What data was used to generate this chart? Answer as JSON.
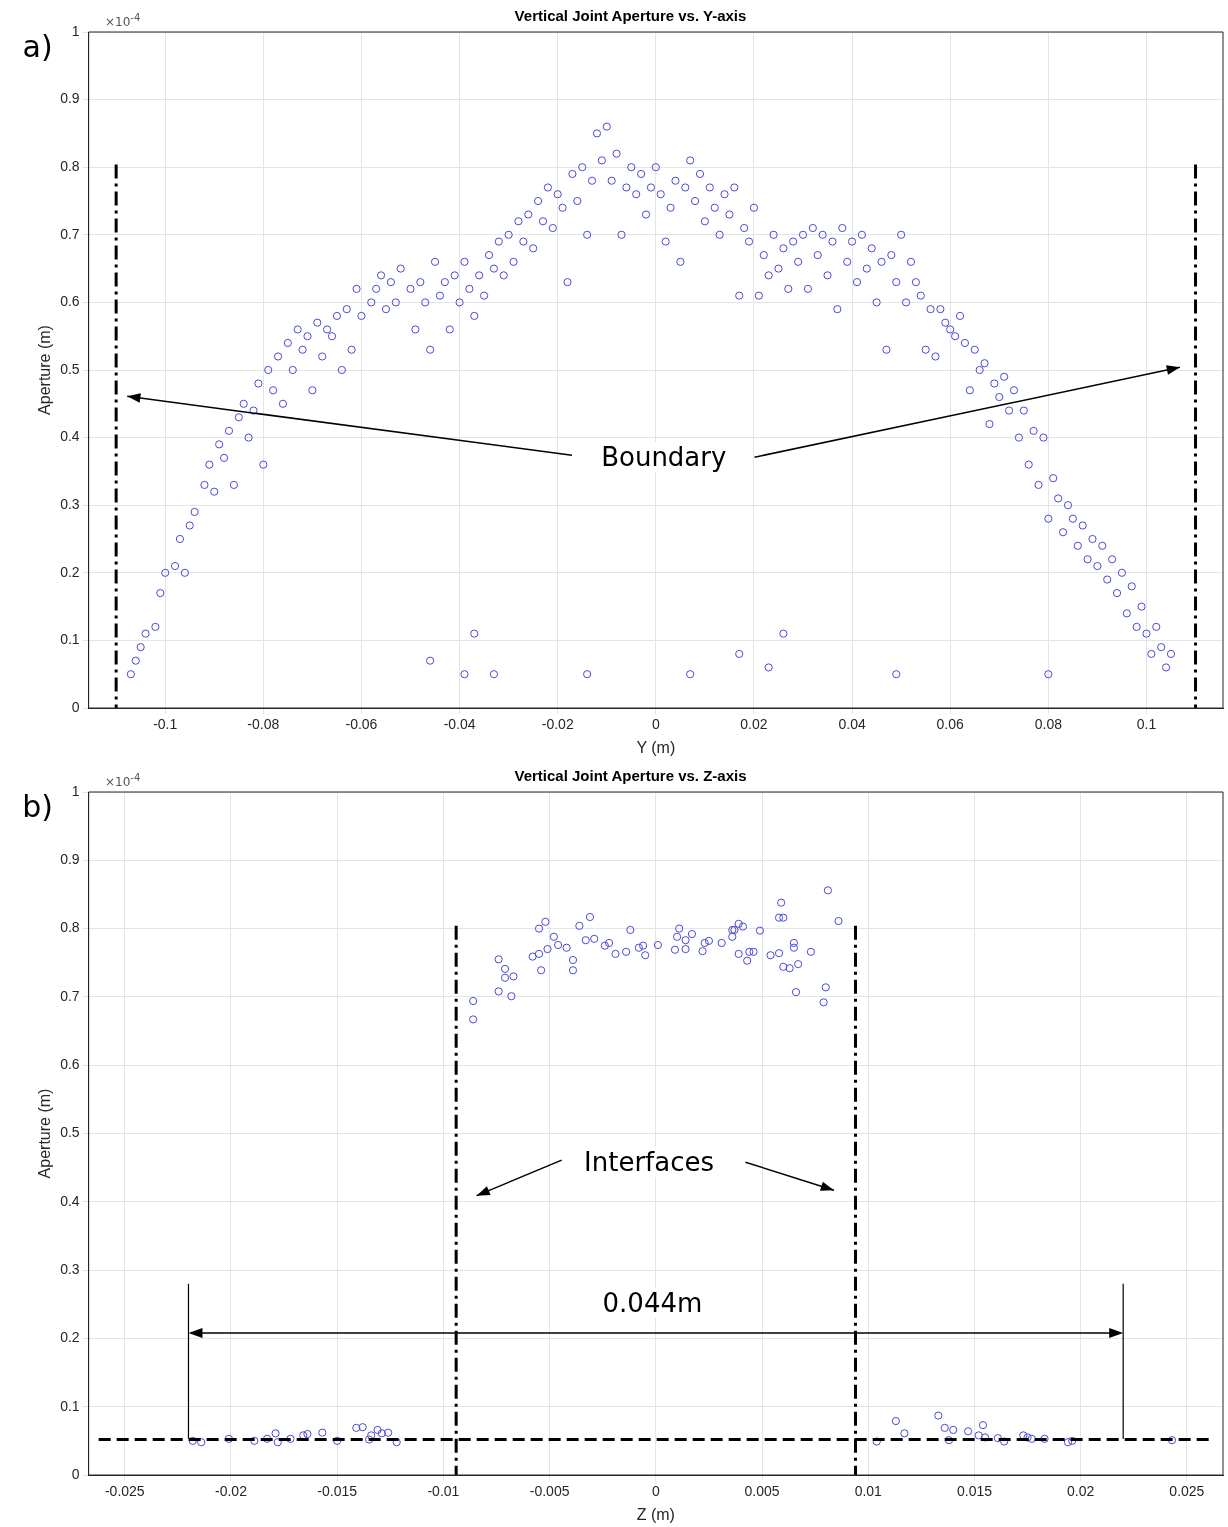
{
  "chart_data": [
    {
      "type": "scatter",
      "title": "Vertical Joint Aperture vs. Y-axis",
      "xlabel": "Y (m)",
      "ylabel": "Aperture (m)",
      "annotations": [
        "a)",
        "×10$^{-4}$",
        "Boundary"
      ],
      "xlim": [
        -0.1156,
        0.1156
      ],
      "ylim": [
        0,
        1
      ],
      "xticks": [
        -0.1,
        -0.08,
        -0.06,
        -0.04,
        -0.02,
        0,
        0.02,
        0.04,
        0.06,
        0.08,
        0.1
      ],
      "yticks": [
        0,
        0.1,
        0.2,
        0.3,
        0.4,
        0.5,
        0.6,
        0.7,
        0.8,
        0.9,
        1
      ],
      "grid": true,
      "marker": "circle",
      "ref_lines": [
        {
          "axis": "x",
          "value": -0.11,
          "color": "#000000",
          "line_style": "dashdot"
        },
        {
          "axis": "x",
          "value": 0.11,
          "color": "#000000",
          "line_style": "dashdot"
        }
      ],
      "series": [
        {
          "color": "#4b4bd6",
          "x": [
            -0.107,
            -0.106,
            -0.105,
            -0.104,
            -0.102,
            -0.101,
            -0.1,
            -0.098,
            -0.097,
            -0.096,
            -0.095,
            -0.094,
            -0.092,
            -0.091,
            -0.09,
            -0.089,
            -0.088,
            -0.087,
            -0.086,
            -0.085,
            -0.084,
            -0.083,
            -0.082,
            -0.081,
            -0.08,
            -0.079,
            -0.078,
            -0.077,
            -0.076,
            -0.075,
            -0.074,
            -0.073,
            -0.072,
            -0.071,
            -0.07,
            -0.069,
            -0.068,
            -0.067,
            -0.066,
            -0.065,
            -0.064,
            -0.063,
            -0.062,
            -0.061,
            -0.06,
            -0.058,
            -0.057,
            -0.056,
            -0.055,
            -0.054,
            -0.053,
            -0.052,
            -0.05,
            -0.049,
            -0.048,
            -0.047,
            -0.046,
            -0.045,
            -0.044,
            -0.043,
            -0.042,
            -0.041,
            -0.04,
            -0.039,
            -0.038,
            -0.037,
            -0.036,
            -0.035,
            -0.034,
            -0.033,
            -0.032,
            -0.031,
            -0.03,
            -0.029,
            -0.028,
            -0.027,
            -0.026,
            -0.025,
            -0.024,
            -0.023,
            -0.022,
            -0.021,
            -0.02,
            -0.019,
            -0.018,
            -0.017,
            -0.016,
            -0.015,
            -0.014,
            -0.013,
            -0.012,
            -0.011,
            -0.01,
            -0.009,
            -0.008,
            -0.007,
            -0.006,
            -0.005,
            -0.004,
            -0.003,
            -0.002,
            -0.001,
            0,
            0.001,
            0.002,
            0.003,
            0.004,
            0.005,
            0.006,
            0.007,
            0.008,
            0.009,
            0.01,
            0.011,
            0.012,
            0.013,
            0.014,
            0.015,
            0.016,
            0.017,
            0.018,
            0.019,
            0.02,
            0.021,
            0.022,
            0.023,
            0.024,
            0.025,
            0.026,
            0.027,
            0.028,
            0.029,
            0.03,
            0.031,
            0.032,
            0.033,
            0.034,
            0.035,
            0.036,
            0.037,
            0.038,
            0.039,
            0.04,
            0.041,
            0.042,
            0.043,
            0.044,
            0.045,
            0.046,
            0.047,
            0.048,
            0.049,
            0.05,
            0.051,
            0.052,
            0.053,
            0.054,
            0.055,
            0.056,
            0.057,
            0.058,
            0.059,
            0.06,
            0.061,
            0.062,
            0.063,
            0.064,
            0.065,
            0.066,
            0.067,
            0.068,
            0.069,
            0.07,
            0.071,
            0.072,
            0.073,
            0.074,
            0.075,
            0.076,
            0.077,
            0.078,
            0.079,
            0.08,
            0.081,
            0.082,
            0.083,
            0.084,
            0.085,
            0.086,
            0.087,
            0.088,
            0.089,
            0.09,
            0.091,
            0.092,
            0.093,
            0.094,
            0.095,
            0.096,
            0.097,
            0.098,
            0.099,
            0.1,
            0.101,
            0.102,
            0.103,
            0.104,
            0.105,
            -0.046,
            -0.039,
            -0.037,
            -0.033,
            -0.014,
            0.007,
            0.017,
            0.023,
            0.026,
            0.049,
            0.08
          ],
          "values": [
            0.05,
            0.07,
            0.09,
            0.11,
            0.12,
            0.17,
            0.2,
            0.21,
            0.25,
            0.2,
            0.27,
            0.29,
            0.33,
            0.36,
            0.32,
            0.39,
            0.37,
            0.41,
            0.33,
            0.43,
            0.45,
            0.4,
            0.44,
            0.48,
            0.36,
            0.5,
            0.47,
            0.52,
            0.45,
            0.54,
            0.5,
            0.56,
            0.53,
            0.55,
            0.47,
            0.57,
            0.52,
            0.56,
            0.55,
            0.58,
            0.5,
            0.59,
            0.53,
            0.62,
            0.58,
            0.6,
            0.62,
            0.64,
            0.59,
            0.63,
            0.6,
            0.65,
            0.62,
            0.56,
            0.63,
            0.6,
            0.53,
            0.66,
            0.61,
            0.63,
            0.56,
            0.64,
            0.6,
            0.66,
            0.62,
            0.58,
            0.64,
            0.61,
            0.67,
            0.65,
            0.69,
            0.64,
            0.7,
            0.66,
            0.72,
            0.69,
            0.73,
            0.68,
            0.75,
            0.72,
            0.77,
            0.71,
            0.76,
            0.74,
            0.63,
            0.79,
            0.75,
            0.8,
            0.7,
            0.78,
            0.85,
            0.81,
            0.86,
            0.78,
            0.82,
            0.7,
            0.77,
            0.8,
            0.76,
            0.79,
            0.73,
            0.77,
            0.8,
            0.76,
            0.69,
            0.74,
            0.78,
            0.66,
            0.77,
            0.81,
            0.75,
            0.79,
            0.72,
            0.77,
            0.74,
            0.7,
            0.76,
            0.73,
            0.77,
            0.61,
            0.71,
            0.69,
            0.74,
            0.61,
            0.67,
            0.64,
            0.7,
            0.65,
            0.68,
            0.62,
            0.69,
            0.66,
            0.7,
            0.62,
            0.71,
            0.67,
            0.7,
            0.64,
            0.69,
            0.59,
            0.71,
            0.66,
            0.69,
            0.63,
            0.7,
            0.65,
            0.68,
            0.6,
            0.66,
            0.53,
            0.67,
            0.63,
            0.7,
            0.6,
            0.66,
            0.63,
            0.61,
            0.53,
            0.59,
            0.52,
            0.59,
            0.57,
            0.56,
            0.55,
            0.58,
            0.54,
            0.47,
            0.53,
            0.5,
            0.51,
            0.42,
            0.48,
            0.46,
            0.49,
            0.44,
            0.47,
            0.4,
            0.44,
            0.36,
            0.41,
            0.33,
            0.4,
            0.28,
            0.34,
            0.31,
            0.26,
            0.3,
            0.28,
            0.24,
            0.27,
            0.22,
            0.25,
            0.21,
            0.24,
            0.19,
            0.22,
            0.17,
            0.2,
            0.14,
            0.18,
            0.12,
            0.15,
            0.11,
            0.08,
            0.12,
            0.09,
            0.06,
            0.08,
            0.07,
            0.05,
            0.11,
            0.05,
            0.05,
            0.05,
            0.08,
            0.06,
            0.11,
            0.05,
            0.05
          ]
        }
      ]
    },
    {
      "type": "scatter",
      "title": "Vertical Joint Aperture vs. Z-axis",
      "xlabel": "Z (m)",
      "ylabel": "Aperture (m)",
      "annotations": [
        "b)",
        "×10$^{-4}$",
        "Interfaces",
        "0.044m"
      ],
      "xlim": [
        -0.0267,
        0.0267
      ],
      "ylim": [
        0,
        1
      ],
      "xticks": [
        -0.025,
        -0.02,
        -0.015,
        -0.01,
        -0.005,
        0,
        0.005,
        0.01,
        0.015,
        0.02,
        0.025
      ],
      "yticks": [
        0,
        0.1,
        0.2,
        0.3,
        0.4,
        0.5,
        0.6,
        0.7,
        0.8,
        0.9,
        1
      ],
      "grid": true,
      "marker": "circle",
      "ref_lines": [
        {
          "axis": "x",
          "value": -0.0094,
          "color": "#000000",
          "line_style": "dashdot"
        },
        {
          "axis": "x",
          "value": 0.0094,
          "color": "#000000",
          "line_style": "dashdot"
        },
        {
          "axis": "y",
          "value": 0.052,
          "color": "#000000",
          "line_style": "dashed"
        }
      ],
      "series": [
        {
          "color": "#4b4bd6",
          "x": [
            -0.0086,
            -0.0086,
            -0.0074,
            -0.0074,
            -0.0071,
            -0.0071,
            -0.0068,
            -0.0067,
            -0.0058,
            -0.0055,
            -0.0055,
            -0.0054,
            -0.0052,
            -0.0051,
            -0.0048,
            -0.0046,
            -0.0042,
            -0.0039,
            -0.0039,
            -0.0036,
            -0.0033,
            -0.0031,
            -0.0029,
            -0.0024,
            -0.0022,
            -0.0019,
            -0.0014,
            -0.0012,
            -0.0008,
            -0.0006,
            -0.0005,
            0.0001,
            0.0009,
            0.001,
            0.0011,
            0.0014,
            0.0014,
            0.0017,
            0.0022,
            0.0023,
            0.0025,
            0.0031,
            0.0036,
            0.0036,
            0.0037,
            0.0039,
            0.0039,
            0.0041,
            0.0043,
            0.0044,
            0.0046,
            0.0049,
            0.0054,
            0.0058,
            0.0059,
            0.0058,
            0.006,
            0.006,
            0.0063,
            0.0065,
            0.0065,
            0.0066,
            0.0067,
            0.0073,
            0.0079,
            0.008,
            0.0081,
            0.0086,
            -0.0218,
            -0.0214,
            -0.0201,
            -0.0189,
            -0.0183,
            -0.0179,
            -0.0178,
            -0.0172,
            -0.0166,
            -0.0164,
            -0.0157,
            -0.015,
            -0.0141,
            -0.0138,
            -0.0135,
            -0.0134,
            -0.0131,
            -0.0129,
            -0.0126,
            -0.0122,
            0.0104,
            0.0113,
            0.0117,
            0.0133,
            0.0136,
            0.0138,
            0.014,
            0.0147,
            0.0152,
            0.0154,
            0.0155,
            0.0161,
            0.0164,
            0.0173,
            0.0175,
            0.0177,
            0.0183,
            0.0194,
            0.0196,
            0.0243
          ],
          "values": [
            0.667,
            0.694,
            0.755,
            0.708,
            0.741,
            0.728,
            0.701,
            0.73,
            0.759,
            0.763,
            0.8,
            0.739,
            0.81,
            0.77,
            0.788,
            0.776,
            0.772,
            0.754,
            0.739,
            0.804,
            0.783,
            0.817,
            0.785,
            0.775,
            0.779,
            0.763,
            0.766,
            0.798,
            0.772,
            0.775,
            0.761,
            0.776,
            0.769,
            0.788,
            0.8,
            0.77,
            0.783,
            0.792,
            0.767,
            0.779,
            0.782,
            0.779,
            0.798,
            0.788,
            0.798,
            0.807,
            0.763,
            0.803,
            0.753,
            0.766,
            0.766,
            0.797,
            0.761,
            0.764,
            0.838,
            0.816,
            0.816,
            0.744,
            0.742,
            0.779,
            0.772,
            0.707,
            0.748,
            0.766,
            0.692,
            0.714,
            0.856,
            0.811,
            0.05,
            0.048,
            0.053,
            0.05,
            0.053,
            0.061,
            0.048,
            0.053,
            0.058,
            0.06,
            0.062,
            0.05,
            0.069,
            0.07,
            0.052,
            0.058,
            0.066,
            0.061,
            0.062,
            0.048,
            0.049,
            0.079,
            0.061,
            0.087,
            0.069,
            0.051,
            0.066,
            0.064,
            0.058,
            0.073,
            0.055,
            0.054,
            0.049,
            0.058,
            0.055,
            0.053,
            0.053,
            0.048,
            0.05,
            0.051
          ]
        }
      ]
    }
  ]
}
